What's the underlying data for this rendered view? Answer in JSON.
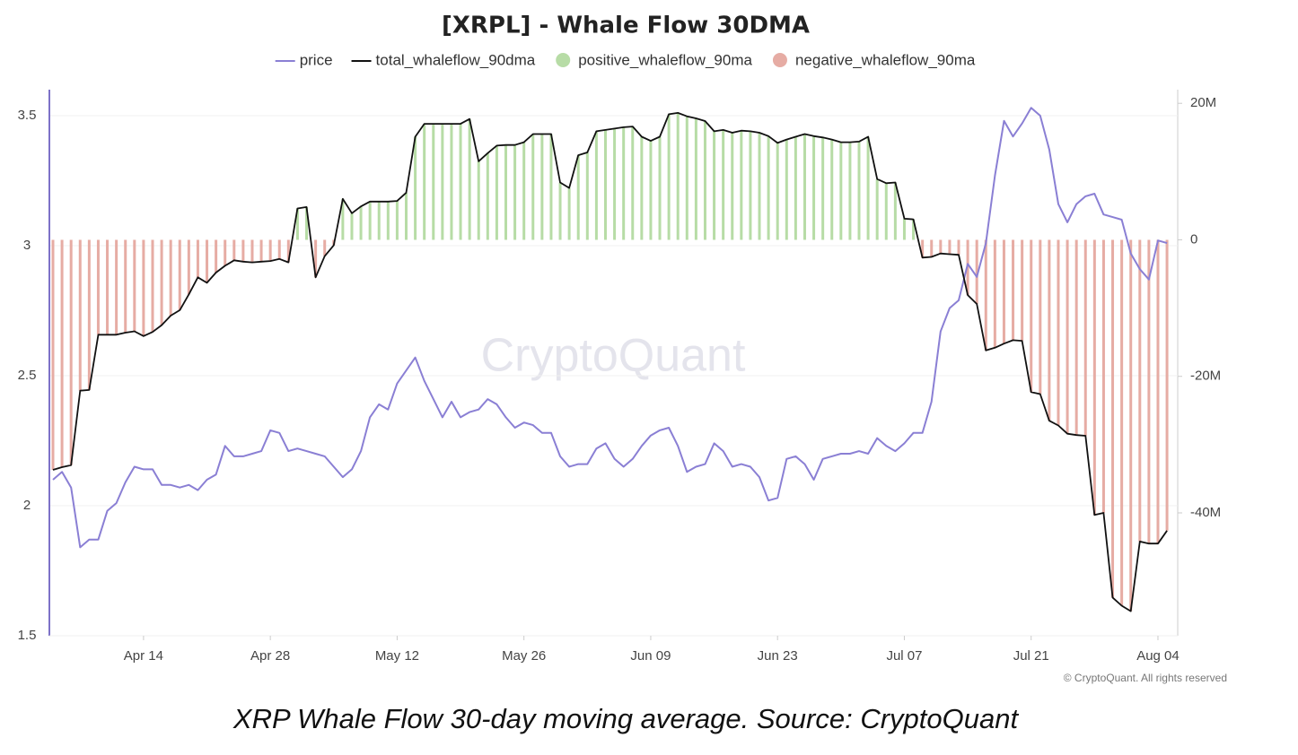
{
  "chart_data": {
    "type": "line",
    "title": "[XRPL] - Whale Flow 30DMA",
    "caption": "XRP Whale Flow 30-day moving average. Source: CryptoQuant",
    "watermark": "CryptoQuant",
    "copyright": "© CryptoQuant. All rights reserved",
    "categories": [
      null,
      null,
      null,
      null,
      null,
      null,
      null,
      null,
      null,
      null,
      "Apr 14",
      null,
      null,
      null,
      null,
      null,
      null,
      null,
      null,
      null,
      null,
      null,
      null,
      null,
      "Apr 28",
      null,
      null,
      null,
      null,
      null,
      null,
      null,
      null,
      null,
      null,
      null,
      null,
      null,
      "May 12",
      null,
      null,
      null,
      null,
      null,
      null,
      null,
      null,
      null,
      null,
      null,
      null,
      null,
      "May 26",
      null,
      null,
      null,
      null,
      null,
      null,
      null,
      null,
      null,
      null,
      null,
      null,
      null,
      "Jun 09",
      null,
      null,
      null,
      null,
      null,
      null,
      null,
      null,
      null,
      null,
      null,
      null,
      null,
      "Jun 23",
      null,
      null,
      null,
      null,
      null,
      null,
      null,
      null,
      null,
      null,
      null,
      null,
      null,
      "Jul 07",
      null,
      null,
      null,
      null,
      null,
      null,
      null,
      null,
      null,
      null,
      null,
      null,
      null,
      "Jul 21",
      null,
      null,
      null,
      null,
      null,
      null,
      null,
      null,
      null,
      null,
      null,
      null,
      null,
      "Aug 04",
      null
    ],
    "ylim": [
      1.5,
      3.6
    ],
    "yticks": [
      1.5,
      2,
      2.5,
      3,
      3.5
    ],
    "y2lim": [
      -58000000,
      22000000
    ],
    "y2ticks": [
      {
        "value": -40000000,
        "label": "-40M"
      },
      {
        "value": -20000000,
        "label": "-20M"
      },
      0,
      {
        "value": 20000000,
        "label": "20M"
      }
    ],
    "grid": true,
    "legend": "top",
    "series": [
      {
        "name": "price",
        "type": "line",
        "axis": "y",
        "color": "#8a7fd4",
        "values": [
          2.1,
          2.13,
          2.07,
          1.84,
          1.87,
          1.87,
          1.98,
          2.01,
          2.09,
          2.15,
          2.14,
          2.14,
          2.08,
          2.08,
          2.07,
          2.08,
          2.06,
          2.1,
          2.12,
          2.23,
          2.19,
          2.19,
          2.2,
          2.21,
          2.29,
          2.28,
          2.21,
          2.22,
          2.21,
          2.2,
          2.19,
          2.15,
          2.11,
          2.14,
          2.21,
          2.34,
          2.39,
          2.37,
          2.47,
          2.52,
          2.57,
          2.48,
          2.41,
          2.34,
          2.4,
          2.34,
          2.36,
          2.37,
          2.41,
          2.39,
          2.34,
          2.3,
          2.32,
          2.31,
          2.28,
          2.28,
          2.19,
          2.15,
          2.16,
          2.16,
          2.22,
          2.24,
          2.18,
          2.15,
          2.18,
          2.23,
          2.27,
          2.29,
          2.3,
          2.23,
          2.13,
          2.15,
          2.16,
          2.24,
          2.21,
          2.15,
          2.16,
          2.15,
          2.11,
          2.02,
          2.03,
          2.18,
          2.19,
          2.16,
          2.1,
          2.18,
          2.19,
          2.2,
          2.2,
          2.21,
          2.2,
          2.26,
          2.23,
          2.21,
          2.24,
          2.28,
          2.28,
          2.4,
          2.67,
          2.76,
          2.79,
          2.93,
          2.88,
          3.01,
          3.27,
          3.48,
          3.42,
          3.47,
          3.53,
          3.5,
          3.37,
          3.16,
          3.09,
          3.16,
          3.19,
          3.2,
          3.12,
          3.11,
          3.1,
          2.97,
          2.91,
          2.87,
          3.02,
          3.01
        ]
      },
      {
        "name": "total_whaleflow_90dma",
        "type": "line",
        "axis": "y2",
        "color": "#111111",
        "values": [
          -33700000,
          -33300000,
          -33000000,
          -22100000,
          -22000000,
          -13900000,
          -13900000,
          -13900000,
          -13600000,
          -13400000,
          -14100000,
          -13500000,
          -12500000,
          -11100000,
          -10300000,
          -8000000,
          -5500000,
          -6300000,
          -4800000,
          -3800000,
          -3000000,
          -3200000,
          -3300000,
          -3200000,
          -3100000,
          -2800000,
          -3300000,
          4600000,
          4800000,
          -5500000,
          -2400000,
          -800000,
          6000000,
          3900000,
          4900000,
          5600000,
          5600000,
          5600000,
          5700000,
          6900000,
          15100000,
          17000000,
          17000000,
          17000000,
          17000000,
          17000000,
          17700000,
          11500000,
          12700000,
          13800000,
          13900000,
          13900000,
          14300000,
          15500000,
          15500000,
          15500000,
          8400000,
          7600000,
          12400000,
          12800000,
          15900000,
          16100000,
          16300000,
          16500000,
          16600000,
          15100000,
          14500000,
          15100000,
          18400000,
          18600000,
          18100000,
          17800000,
          17400000,
          15900000,
          16100000,
          15700000,
          16000000,
          15900000,
          15700000,
          15200000,
          14200000,
          14700000,
          15100000,
          15500000,
          15200000,
          15000000,
          14700000,
          14300000,
          14300000,
          14400000,
          15100000,
          8900000,
          8300000,
          8400000,
          3100000,
          3000000,
          -2600000,
          -2500000,
          -2000000,
          -2100000,
          -2200000,
          -8100000,
          -9400000,
          -16200000,
          -15800000,
          -15200000,
          -14700000,
          -14800000,
          -22300000,
          -22600000,
          -26500000,
          -27200000,
          -28400000,
          -28600000,
          -28700000,
          -40300000,
          -40000000,
          -52400000,
          -53600000,
          -54400000,
          -44200000,
          -44500000,
          -44500000,
          -42600000
        ]
      },
      {
        "name": "positive_whaleflow_90ma",
        "type": "bar",
        "axis": "y2",
        "color": "#b7dca6",
        "values": [
          null,
          null,
          null,
          null,
          null,
          null,
          null,
          null,
          null,
          null,
          null,
          null,
          null,
          null,
          null,
          null,
          null,
          null,
          null,
          null,
          null,
          null,
          null,
          null,
          null,
          null,
          null,
          4600000,
          4800000,
          null,
          null,
          null,
          6000000,
          3900000,
          4900000,
          5600000,
          5600000,
          5600000,
          5700000,
          6900000,
          15100000,
          17000000,
          17000000,
          17000000,
          17000000,
          17000000,
          17700000,
          11500000,
          12700000,
          13800000,
          13900000,
          13900000,
          14300000,
          15500000,
          15500000,
          15500000,
          8400000,
          7600000,
          12400000,
          12800000,
          15900000,
          16100000,
          16300000,
          16500000,
          16600000,
          15100000,
          14500000,
          15100000,
          18400000,
          18600000,
          18100000,
          17800000,
          17400000,
          15900000,
          16100000,
          15700000,
          16000000,
          15900000,
          15700000,
          15200000,
          14200000,
          14700000,
          15100000,
          15500000,
          15200000,
          15000000,
          14700000,
          14300000,
          14300000,
          14400000,
          15100000,
          8900000,
          8300000,
          8400000,
          3100000,
          3000000,
          null,
          null,
          null,
          null,
          null,
          null,
          null,
          null,
          null,
          null,
          null,
          null,
          null,
          null,
          null,
          null,
          null,
          null,
          null,
          null,
          null,
          null,
          null,
          null,
          null,
          null,
          null,
          null
        ]
      },
      {
        "name": "negative_whaleflow_90ma",
        "type": "bar",
        "axis": "y2",
        "color": "#e6aca4",
        "values": [
          -33700000,
          -33300000,
          -33000000,
          -22100000,
          -22000000,
          -13900000,
          -13900000,
          -13900000,
          -13600000,
          -13400000,
          -14100000,
          -13500000,
          -12500000,
          -11100000,
          -10300000,
          -8000000,
          -5500000,
          -6300000,
          -4800000,
          -3800000,
          -3000000,
          -3200000,
          -3300000,
          -3200000,
          -3100000,
          -2800000,
          -3300000,
          null,
          null,
          -5500000,
          -2400000,
          -800000,
          null,
          null,
          null,
          null,
          null,
          null,
          null,
          null,
          null,
          null,
          null,
          null,
          null,
          null,
          null,
          null,
          null,
          null,
          null,
          null,
          null,
          null,
          null,
          null,
          null,
          null,
          null,
          null,
          null,
          null,
          null,
          null,
          null,
          null,
          null,
          null,
          null,
          null,
          null,
          null,
          null,
          null,
          null,
          null,
          null,
          null,
          null,
          null,
          null,
          null,
          null,
          null,
          null,
          null,
          null,
          null,
          null,
          null,
          null,
          null,
          null,
          null,
          null,
          null,
          -2600000,
          -2500000,
          -2000000,
          -2100000,
          -2200000,
          -8100000,
          -9400000,
          -16200000,
          -15800000,
          -15200000,
          -14700000,
          -14800000,
          -22300000,
          -22600000,
          -26500000,
          -27200000,
          -28400000,
          -28600000,
          -28700000,
          -40300000,
          -40000000,
          -52400000,
          -53600000,
          -54400000,
          -44200000,
          -44500000,
          -44500000,
          -42600000
        ]
      }
    ]
  }
}
